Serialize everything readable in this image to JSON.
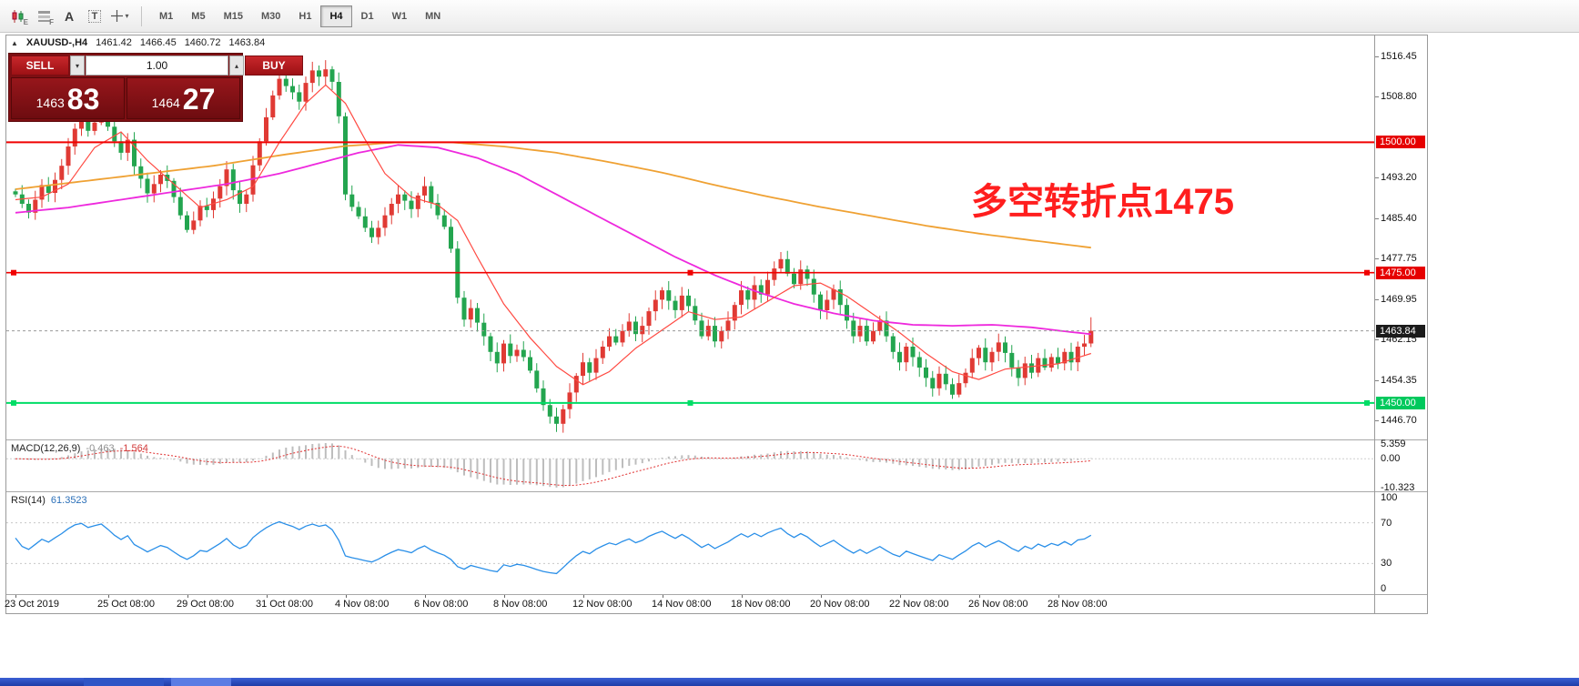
{
  "toolbar": {
    "icons": [
      {
        "name": "candlestick-chart-icon",
        "badge": "E"
      },
      {
        "name": "chart-grid-icon",
        "badge": "F"
      },
      {
        "name": "text-annotation-icon",
        "badge": "A"
      },
      {
        "name": "text-label-icon",
        "badge": "T"
      },
      {
        "name": "crosshair-tool-icon",
        "badge": ""
      }
    ],
    "caret_icon": "▾",
    "timeframes": [
      {
        "label": "M1",
        "active": false
      },
      {
        "label": "M5",
        "active": false
      },
      {
        "label": "M15",
        "active": false
      },
      {
        "label": "M30",
        "active": false
      },
      {
        "label": "H1",
        "active": false
      },
      {
        "label": "H4",
        "active": true
      },
      {
        "label": "D1",
        "active": false
      },
      {
        "label": "W1",
        "active": false
      },
      {
        "label": "MN",
        "active": false
      }
    ]
  },
  "window_header": {
    "collapse_icon": "▲",
    "symbol": "XAUUSD-,H4",
    "open": "1461.42",
    "high": "1466.45",
    "low": "1460.72",
    "close": "1463.84"
  },
  "trade_panel": {
    "sell_label": "SELL",
    "buy_label": "BUY",
    "volume": "1.00",
    "down_icon": "▾",
    "up_icon": "▴",
    "sell_price_major": "1463",
    "sell_price_minor": "83",
    "buy_price_major": "1464",
    "buy_price_minor": "27"
  },
  "annotation": {
    "text": "多空转折点1475",
    "color": "#ff1e1e"
  },
  "macd": {
    "label": "MACD(12,26,9)",
    "value_main": "-0.463",
    "value_signal": "-1.564"
  },
  "rsi": {
    "label": "RSI(14)",
    "value": "61.3523"
  },
  "chart_data": {
    "type": "candlestick",
    "symbol": "XAUUSD-",
    "timeframe": "H4",
    "colors": {
      "up": "#e03a34",
      "down": "#23a54f"
    },
    "last_candle_ohlc": [
      1461.42,
      1466.45,
      1460.72,
      1463.84
    ],
    "closes": [
      1490.0,
      1488.2,
      1486.5,
      1489.0,
      1491.8,
      1490.3,
      1492.8,
      1495.5,
      1499.2,
      1502.6,
      1504.0,
      1502.2,
      1503.8,
      1505.2,
      1503.0,
      1500.2,
      1498.0,
      1500.5,
      1495.4,
      1493.0,
      1490.2,
      1492.0,
      1493.8,
      1492.6,
      1489.5,
      1486.0,
      1483.2,
      1485.0,
      1487.8,
      1487.0,
      1489.2,
      1491.6,
      1494.8,
      1490.8,
      1488.2,
      1490.0,
      1495.6,
      1500.2,
      1504.8,
      1509.0,
      1512.2,
      1510.8,
      1509.6,
      1507.8,
      1511.4,
      1513.8,
      1512.6,
      1514.0,
      1511.6,
      1505.0,
      1490.0,
      1487.6,
      1485.8,
      1483.6,
      1481.8,
      1483.6,
      1486.0,
      1488.2,
      1490.0,
      1488.8,
      1487.2,
      1489.8,
      1491.6,
      1488.4,
      1486.0,
      1483.8,
      1479.6,
      1470.2,
      1466.0,
      1468.2,
      1465.4,
      1462.8,
      1459.8,
      1457.6,
      1461.4,
      1459.0,
      1460.2,
      1458.8,
      1456.2,
      1452.8,
      1449.6,
      1447.4,
      1446.0,
      1448.8,
      1452.0,
      1455.2,
      1457.8,
      1455.8,
      1458.6,
      1460.8,
      1462.8,
      1461.6,
      1463.8,
      1465.6,
      1463.2,
      1464.8,
      1467.6,
      1469.8,
      1471.6,
      1469.6,
      1467.8,
      1470.6,
      1468.6,
      1465.8,
      1462.8,
      1464.8,
      1461.8,
      1463.8,
      1465.8,
      1468.8,
      1471.6,
      1469.8,
      1472.6,
      1470.8,
      1473.6,
      1475.8,
      1477.6,
      1474.8,
      1472.8,
      1475.6,
      1473.8,
      1470.8,
      1467.8,
      1469.8,
      1471.8,
      1468.8,
      1465.8,
      1462.8,
      1464.8,
      1461.8,
      1463.8,
      1465.8,
      1462.8,
      1459.8,
      1457.8,
      1460.8,
      1458.8,
      1456.8,
      1454.8,
      1452.8,
      1455.6,
      1453.6,
      1451.6,
      1453.8,
      1455.8,
      1458.6,
      1460.6,
      1457.8,
      1459.8,
      1461.6,
      1459.6,
      1456.8,
      1454.8,
      1457.6,
      1455.8,
      1458.6,
      1456.8,
      1458.8,
      1457.6,
      1459.8,
      1457.8,
      1460.8,
      1461.42,
      1463.84
    ],
    "price_axis": {
      "min": 1443.0,
      "max": 1520.5,
      "ticks": [
        1516.45,
        1508.8,
        1493.2,
        1485.4,
        1477.75,
        1469.95,
        1462.15,
        1454.35,
        1446.7
      ]
    },
    "hlines": [
      {
        "price": 1500.0,
        "color": "#f00000",
        "width": 2,
        "label": "1500.00",
        "label_bg": "#e60000",
        "handles": false
      },
      {
        "price": 1475.0,
        "color": "#f00000",
        "width": 1.6,
        "label": "1475.00",
        "label_bg": "#e60000",
        "handles": true
      },
      {
        "price": 1450.0,
        "color": "#00dd66",
        "width": 2,
        "label": "1450.00",
        "label_bg": "#00c95d",
        "handles": true
      }
    ],
    "current_price": {
      "value": 1463.84,
      "label": "1463.84",
      "label_bg": "#1b1b1b",
      "line_color": "#9a9a9a"
    },
    "moving_averages": [
      {
        "name": "ma-slow-orange",
        "color": "#efa133",
        "width": 1.8,
        "points": [
          [
            0,
            1491.0
          ],
          [
            10,
            1492.5
          ],
          [
            20,
            1494.0
          ],
          [
            30,
            1495.5
          ],
          [
            40,
            1497.5
          ],
          [
            50,
            1499.3
          ],
          [
            58,
            1500.0
          ],
          [
            66,
            1500.0
          ],
          [
            74,
            1499.2
          ],
          [
            82,
            1498.0
          ],
          [
            90,
            1496.2
          ],
          [
            98,
            1494.2
          ],
          [
            106,
            1491.8
          ],
          [
            114,
            1489.6
          ],
          [
            122,
            1487.6
          ],
          [
            130,
            1485.8
          ],
          [
            138,
            1484.0
          ],
          [
            146,
            1482.5
          ],
          [
            154,
            1481.2
          ],
          [
            163,
            1479.8
          ]
        ]
      },
      {
        "name": "ma-medium-magenta",
        "color": "#ee29dd",
        "width": 1.8,
        "points": [
          [
            0,
            1486.5
          ],
          [
            8,
            1487.5
          ],
          [
            16,
            1489.0
          ],
          [
            24,
            1490.5
          ],
          [
            32,
            1492.0
          ],
          [
            40,
            1494.0
          ],
          [
            46,
            1496.0
          ],
          [
            52,
            1498.0
          ],
          [
            58,
            1499.5
          ],
          [
            64,
            1499.0
          ],
          [
            70,
            1497.0
          ],
          [
            76,
            1494.0
          ],
          [
            82,
            1490.0
          ],
          [
            88,
            1486.0
          ],
          [
            94,
            1482.0
          ],
          [
            100,
            1478.0
          ],
          [
            106,
            1474.5
          ],
          [
            112,
            1471.5
          ],
          [
            118,
            1469.0
          ],
          [
            124,
            1467.2
          ],
          [
            130,
            1465.8
          ],
          [
            136,
            1465.0
          ],
          [
            142,
            1464.8
          ],
          [
            148,
            1465.0
          ],
          [
            154,
            1464.5
          ],
          [
            160,
            1463.6
          ],
          [
            163,
            1463.2
          ]
        ]
      },
      {
        "name": "ma-fast-red",
        "color": "#ff4a42",
        "width": 1.2,
        "points": [
          [
            0,
            1489.0
          ],
          [
            4,
            1489.5
          ],
          [
            8,
            1492.0
          ],
          [
            12,
            1499.0
          ],
          [
            16,
            1502.0
          ],
          [
            20,
            1496.5
          ],
          [
            24,
            1492.0
          ],
          [
            28,
            1487.5
          ],
          [
            32,
            1489.0
          ],
          [
            36,
            1491.5
          ],
          [
            40,
            1500.0
          ],
          [
            44,
            1507.5
          ],
          [
            47,
            1511.0
          ],
          [
            50,
            1507.5
          ],
          [
            53,
            1500.5
          ],
          [
            56,
            1494.0
          ],
          [
            60,
            1489.5
          ],
          [
            64,
            1488.0
          ],
          [
            67,
            1485.0
          ],
          [
            70,
            1478.0
          ],
          [
            74,
            1469.0
          ],
          [
            78,
            1462.5
          ],
          [
            82,
            1457.0
          ],
          [
            86,
            1453.5
          ],
          [
            90,
            1456.0
          ],
          [
            94,
            1460.5
          ],
          [
            98,
            1464.0
          ],
          [
            102,
            1467.5
          ],
          [
            106,
            1466.0
          ],
          [
            110,
            1466.5
          ],
          [
            114,
            1469.5
          ],
          [
            118,
            1472.5
          ],
          [
            122,
            1473.0
          ],
          [
            126,
            1470.5
          ],
          [
            130,
            1467.0
          ],
          [
            134,
            1463.5
          ],
          [
            138,
            1459.5
          ],
          [
            142,
            1456.0
          ],
          [
            146,
            1454.5
          ],
          [
            150,
            1456.5
          ],
          [
            154,
            1457.0
          ],
          [
            158,
            1457.5
          ],
          [
            163,
            1459.5
          ]
        ]
      }
    ],
    "x_axis": {
      "labels": [
        {
          "text": "23 Oct 2019",
          "index": 0
        },
        {
          "text": "25 Oct 08:00",
          "index": 14
        },
        {
          "text": "29 Oct 08:00",
          "index": 26
        },
        {
          "text": "31 Oct 08:00",
          "index": 38
        },
        {
          "text": "4 Nov 08:00",
          "index": 50
        },
        {
          "text": "6 Nov 08:00",
          "index": 62
        },
        {
          "text": "8 Nov 08:00",
          "index": 74
        },
        {
          "text": "12 Nov 08:00",
          "index": 86
        },
        {
          "text": "14 Nov 08:00",
          "index": 98
        },
        {
          "text": "18 Nov 08:00",
          "index": 110
        },
        {
          "text": "20 Nov 08:00",
          "index": 122
        },
        {
          "text": "22 Nov 08:00",
          "index": 134
        },
        {
          "text": "26 Nov 08:00",
          "index": 146
        },
        {
          "text": "28 Nov 08:00",
          "index": 158
        }
      ]
    },
    "macd_indicator": {
      "params": [
        12,
        26,
        9
      ],
      "range": [
        -11.5,
        6.5
      ],
      "scale_ticks": [
        {
          "v": 5.359,
          "text": "5.359"
        },
        {
          "v": 0,
          "text": "0.00"
        },
        {
          "v": -10.323,
          "text": "-10.323"
        }
      ],
      "histogram_color": "#bdbdbd",
      "signal_color": "#e03030"
    },
    "rsi_indicator": {
      "period": 14,
      "range": [
        0,
        100
      ],
      "levels": [
        70,
        30
      ],
      "scale_ticks": [
        100,
        70,
        30,
        0
      ],
      "color": "#2a8fe8"
    }
  }
}
